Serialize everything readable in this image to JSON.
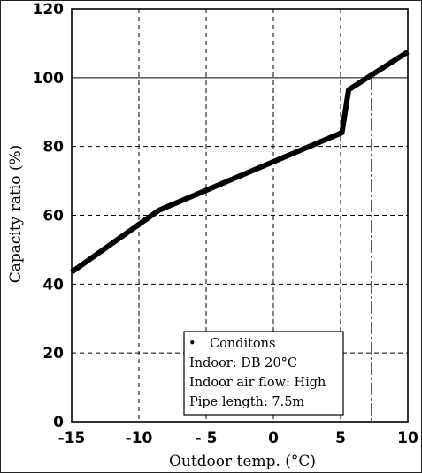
{
  "chart_data": {
    "type": "line",
    "xlabel": "Outdoor temp. (°C)",
    "ylabel": "Capacity ratio (%)",
    "xlim": [
      -15,
      10
    ],
    "ylim": [
      0,
      120
    ],
    "x_ticks": [
      -15,
      -10,
      -5,
      0,
      5,
      10
    ],
    "x_tick_labels": [
      "-15",
      "-10",
      "- 5",
      "0",
      "5",
      "10"
    ],
    "y_ticks": [
      0,
      20,
      40,
      60,
      80,
      100,
      120
    ],
    "y_tick_labels": [
      "0",
      "20",
      "40",
      "60",
      "80",
      "100",
      "120"
    ],
    "grid": true,
    "series": [
      {
        "x": [
          -15,
          -8.5,
          5.1,
          5.6,
          10
        ],
        "y": [
          43.5,
          61.5,
          84,
          96.5,
          107.5
        ]
      }
    ],
    "marker_line": {
      "x": 7.3,
      "y": 100
    },
    "annotation": {
      "bullet": "•",
      "title": "Conditons",
      "lines": [
        "Indoor: DB 20°C",
        "Indoor air flow: High",
        "Pipe length: 7.5m"
      ]
    }
  }
}
